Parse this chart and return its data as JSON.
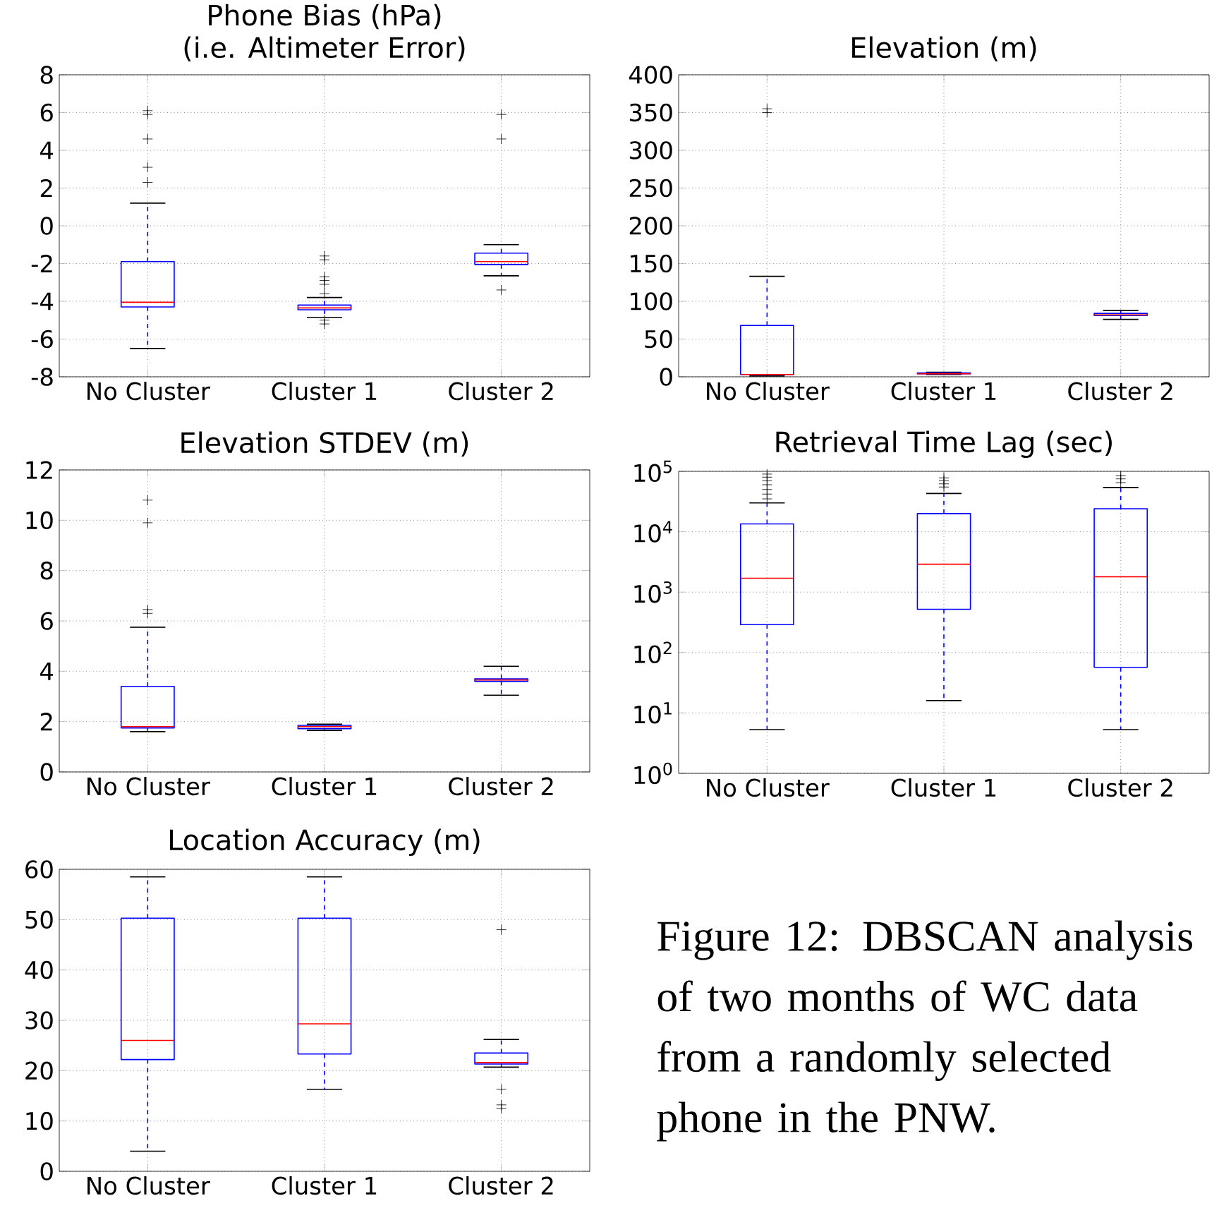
{
  "chart_data": [
    {
      "type": "box",
      "title": "Phone Bias (hPa)",
      "subtitle": "(i.e. Altimeter Error)",
      "categories": [
        "No Cluster",
        "Cluster 1",
        "Cluster 2"
      ],
      "ylim": [
        -8,
        8
      ],
      "yticks": [
        -8,
        -6,
        -4,
        -2,
        0,
        2,
        4,
        6,
        8
      ],
      "grid": true,
      "marker": "cross",
      "series": [
        {
          "color": "#0000ff",
          "line_style": "dashed",
          "boxes": [
            {
              "low": -6.5,
              "q1": -4.3,
              "median": -4.05,
              "q3": -1.9,
              "high": 1.2,
              "outliers": [
                2.3,
                3.1,
                4.6,
                5.9,
                6.1
              ]
            },
            {
              "low": -4.85,
              "q1": -4.45,
              "median": -4.35,
              "q3": -4.2,
              "high": -3.8,
              "outliers": [
                -1.6,
                -1.8,
                -2.7,
                -2.9,
                -3.1,
                -3.6,
                -5.0,
                -5.2
              ]
            },
            {
              "low": -2.65,
              "q1": -2.05,
              "median": -1.9,
              "q3": -1.45,
              "high": -1.0,
              "outliers": [
                -3.4,
                4.6,
                5.9
              ]
            }
          ]
        }
      ]
    },
    {
      "type": "box",
      "title": "Elevation (m)",
      "categories": [
        "No Cluster",
        "Cluster 1",
        "Cluster 2"
      ],
      "ylim": [
        0,
        400
      ],
      "yticks": [
        0,
        50,
        100,
        150,
        200,
        250,
        300,
        350,
        400
      ],
      "grid": true,
      "marker": "cross",
      "series": [
        {
          "color": "#0000ff",
          "line_style": "dashed",
          "boxes": [
            {
              "low": 1,
              "q1": 3,
              "median": 3,
              "q3": 68,
              "high": 133,
              "outliers": [
                350,
                355
              ]
            },
            {
              "low": 3,
              "q1": 4,
              "median": 4,
              "q3": 5,
              "high": 6
            },
            {
              "low": 76,
              "q1": 81,
              "median": 82,
              "q3": 84,
              "high": 88
            }
          ]
        }
      ]
    },
    {
      "type": "box",
      "title": "Elevation STDEV (m)",
      "categories": [
        "No Cluster",
        "Cluster 1",
        "Cluster 2"
      ],
      "ylim": [
        0,
        12
      ],
      "yticks": [
        0,
        2,
        4,
        6,
        8,
        10,
        12
      ],
      "grid": true,
      "marker": "cross",
      "series": [
        {
          "color": "#0000ff",
          "line_style": "dashed",
          "boxes": [
            {
              "low": 1.6,
              "q1": 1.75,
              "median": 1.8,
              "q3": 3.4,
              "high": 5.75,
              "outliers": [
                6.3,
                6.45,
                9.9,
                10.8
              ]
            },
            {
              "low": 1.65,
              "q1": 1.72,
              "median": 1.8,
              "q3": 1.85,
              "high": 1.9
            },
            {
              "low": 3.05,
              "q1": 3.6,
              "median": 3.65,
              "q3": 3.7,
              "high": 4.2
            }
          ]
        }
      ]
    },
    {
      "type": "box",
      "title": "Retrieval Time Lag (sec)",
      "categories": [
        "No Cluster",
        "Cluster 1",
        "Cluster 2"
      ],
      "log": "y",
      "ylim": [
        1,
        100000
      ],
      "yticks": [
        {
          "value": 1,
          "label": "10$^{0}$"
        },
        {
          "value": 10,
          "label": "10$^{1}$"
        },
        {
          "value": 100,
          "label": "10$^{2}$"
        },
        {
          "value": 1000,
          "label": "10$^{3}$"
        },
        {
          "value": 10000,
          "label": "10$^{4}$"
        },
        {
          "value": 100000,
          "label": "10$^{5}$"
        }
      ],
      "grid": true,
      "marker": "cross",
      "series": [
        {
          "color": "#0000ff",
          "line_style": "dashed",
          "boxes": [
            {
              "low": 5.3,
              "q1": 290,
              "median": 1700,
              "q3": 13500,
              "high": 30000,
              "outliers": [
                35000,
                42000,
                50000,
                60000,
                70000,
                80000,
                90000
              ]
            },
            {
              "low": 16,
              "q1": 520,
              "median": 2900,
              "q3": 20000,
              "high": 43000,
              "outliers": [
                55000,
                62000,
                70000,
                78000
              ]
            },
            {
              "low": 5.3,
              "q1": 57,
              "median": 1800,
              "q3": 24000,
              "high": 54000,
              "outliers": [
                65000,
                75000,
                85000
              ]
            }
          ]
        }
      ]
    },
    {
      "type": "box",
      "title": "Location Accuracy (m)",
      "categories": [
        "No Cluster",
        "Cluster 1",
        "Cluster 2"
      ],
      "ylim": [
        0,
        60
      ],
      "yticks": [
        0,
        10,
        20,
        30,
        40,
        50,
        60
      ],
      "grid": true,
      "marker": "cross",
      "series": [
        {
          "color": "#0000ff",
          "line_style": "dashed",
          "boxes": [
            {
              "low": 4,
              "q1": 22.2,
              "median": 26,
              "q3": 50.3,
              "high": 58.5
            },
            {
              "low": 16.3,
              "q1": 23.3,
              "median": 29.3,
              "q3": 50.3,
              "high": 58.5
            },
            {
              "low": 20.7,
              "q1": 21.3,
              "median": 21.6,
              "q3": 23.5,
              "high": 26.2,
              "outliers": [
                12.5,
                13.2,
                16.3,
                48
              ]
            }
          ]
        }
      ]
    },
    {
      "type": "other",
      "annotations": [
        "Figure 12: DBSCAN analysis of two months of WC data from a randomly selected phone in the PNW."
      ]
    }
  ]
}
